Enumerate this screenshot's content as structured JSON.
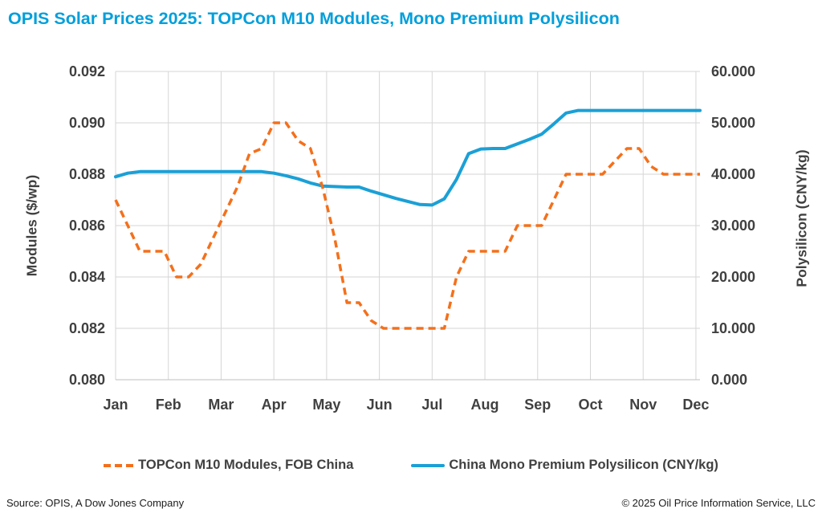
{
  "title": "OPIS Solar Prices 2025: TOPCon M10 Modules, Mono Premium Polysilicon",
  "colors": {
    "title": "#009FDB",
    "modules_orange": "#F4701B",
    "polysilicon_blue": "#1BA0D6",
    "grid": "#D6D6D6",
    "axis_line": "#BFBFBF",
    "text": "#404040"
  },
  "chart_data": {
    "type": "line",
    "title": "OPIS Solar Prices 2025: TOPCon M10 Modules, Mono Premium Polysilicon",
    "x_unit": "weekly (Jan–Dec 2025)",
    "weeks": 49,
    "weeks_per_month": 4.3333,
    "grid": true,
    "legend_position": "bottom",
    "x_ticks": [
      "Jan",
      "Feb",
      "Mar",
      "Apr",
      "May",
      "Jun",
      "Jul",
      "Aug",
      "Sep",
      "Oct",
      "Nov",
      "Dec"
    ],
    "left_axis": {
      "title": "Modules ($/wp)",
      "min": 0.08,
      "max": 0.092,
      "ticks": [
        "0.092",
        "0.090",
        "0.088",
        "0.086",
        "0.084",
        "0.082",
        "0.080"
      ]
    },
    "right_axis": {
      "title": "Polysilicon (CNY/kg)",
      "min": 0,
      "max": 60,
      "ticks": [
        "60.000",
        "50.000",
        "40.000",
        "30.000",
        "20.000",
        "10.000",
        "0.000"
      ]
    },
    "series": [
      {
        "id": "polysilicon",
        "name": "China Mono Premium Polysilicon (CNY/kg)",
        "axis": "right",
        "style": "solid",
        "color": "#1BA0D6",
        "values": [
          39.5,
          40.2,
          40.5,
          40.5,
          40.5,
          40.5,
          40.5,
          40.5,
          40.5,
          40.5,
          40.5,
          40.5,
          40.5,
          40.2,
          39.7,
          39.1,
          38.3,
          37.7,
          37.6,
          37.5,
          37.5,
          36.7,
          36.0,
          35.3,
          34.7,
          34.1,
          34.0,
          35.2,
          39.0,
          44.0,
          44.9,
          45.0,
          45.0,
          45.9,
          46.8,
          47.8,
          49.8,
          51.9,
          52.4,
          52.4,
          52.4,
          52.4,
          52.4,
          52.4,
          52.4,
          52.4,
          52.4,
          52.4,
          52.4
        ]
      },
      {
        "id": "modules",
        "name": "TOPCon M10 Modules, FOB China",
        "axis": "left",
        "style": "dashed",
        "color": "#F4701B",
        "values": [
          0.087,
          0.086,
          0.085,
          0.085,
          0.085,
          0.084,
          0.084,
          0.0845,
          0.0855,
          0.0865,
          0.0875,
          0.0888,
          0.089,
          0.09,
          0.09,
          0.0893,
          0.089,
          0.0875,
          0.0855,
          0.083,
          0.083,
          0.0823,
          0.082,
          0.082,
          0.082,
          0.082,
          0.082,
          0.082,
          0.084,
          0.085,
          0.085,
          0.085,
          0.085,
          0.086,
          0.086,
          0.086,
          0.087,
          0.088,
          0.088,
          0.088,
          0.088,
          0.0885,
          0.089,
          0.089,
          0.0883,
          0.088,
          0.088,
          0.088,
          0.088
        ]
      }
    ]
  },
  "legend": {
    "modules_label": "TOPCon M10 Modules, FOB China",
    "polysilicon_label": "China Mono Premium Polysilicon (CNY/kg)"
  },
  "footer": {
    "source": "Source: OPIS, A Dow Jones Company",
    "copyright": "© 2025 Oil Price Information Service, LLC"
  }
}
